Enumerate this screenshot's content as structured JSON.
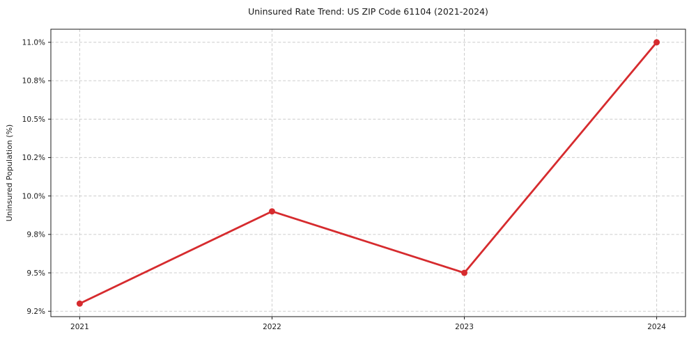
{
  "chart_data": {
    "type": "line",
    "title": "Uninsured Rate Trend: US ZIP Code 61104 (2021-2024)",
    "ylabel": "Uninsured Population (%)",
    "xlabel": "",
    "x": [
      2021,
      2022,
      2023,
      2024
    ],
    "values": [
      9.3,
      9.9,
      9.5,
      11.0
    ],
    "xlim": [
      2020.85,
      2024.15
    ],
    "ylim": [
      9.215,
      11.085
    ],
    "xticks": [
      {
        "value": 2021,
        "label": "2021"
      },
      {
        "value": 2022,
        "label": "2022"
      },
      {
        "value": 2023,
        "label": "2023"
      },
      {
        "value": 2024,
        "label": "2024"
      }
    ],
    "yticks": [
      {
        "value": 9.25,
        "label": "9.2%"
      },
      {
        "value": 9.5,
        "label": "9.5%"
      },
      {
        "value": 9.75,
        "label": "9.8%"
      },
      {
        "value": 10.0,
        "label": "10.0%"
      },
      {
        "value": 10.25,
        "label": "10.2%"
      },
      {
        "value": 10.5,
        "label": "10.5%"
      },
      {
        "value": 10.75,
        "label": "10.8%"
      },
      {
        "value": 11.0,
        "label": "11.0%"
      }
    ],
    "grid": true,
    "legend": "none",
    "marker": "circle",
    "colors": {
      "line": "#d62b2e",
      "marker": "#d62b2e",
      "grid": "#cccccc",
      "spine": "#1a1a1a",
      "text": "#1a1a1a",
      "background": "#ffffff"
    }
  }
}
